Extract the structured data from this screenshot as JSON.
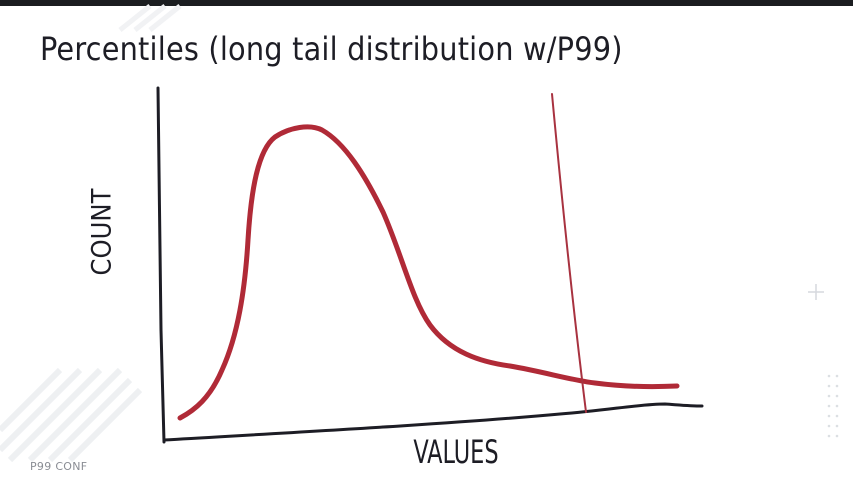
{
  "slide": {
    "title": "Percentiles (long tail distribution w/P99)",
    "footer_brand": "P99 CONF"
  },
  "diagram": {
    "y_axis_label": "COUNT",
    "x_axis_label": "VALUES",
    "curve_color": "#b02a37",
    "axis_color": "#1d1d25",
    "marker_color": "#a83240",
    "shape": "long-tail (right-skewed) distribution",
    "marker": "vertical line at the 99th percentile"
  },
  "decor": {
    "plus_icon": "plus-icon",
    "dot_grid": "dot-grid-icon"
  }
}
